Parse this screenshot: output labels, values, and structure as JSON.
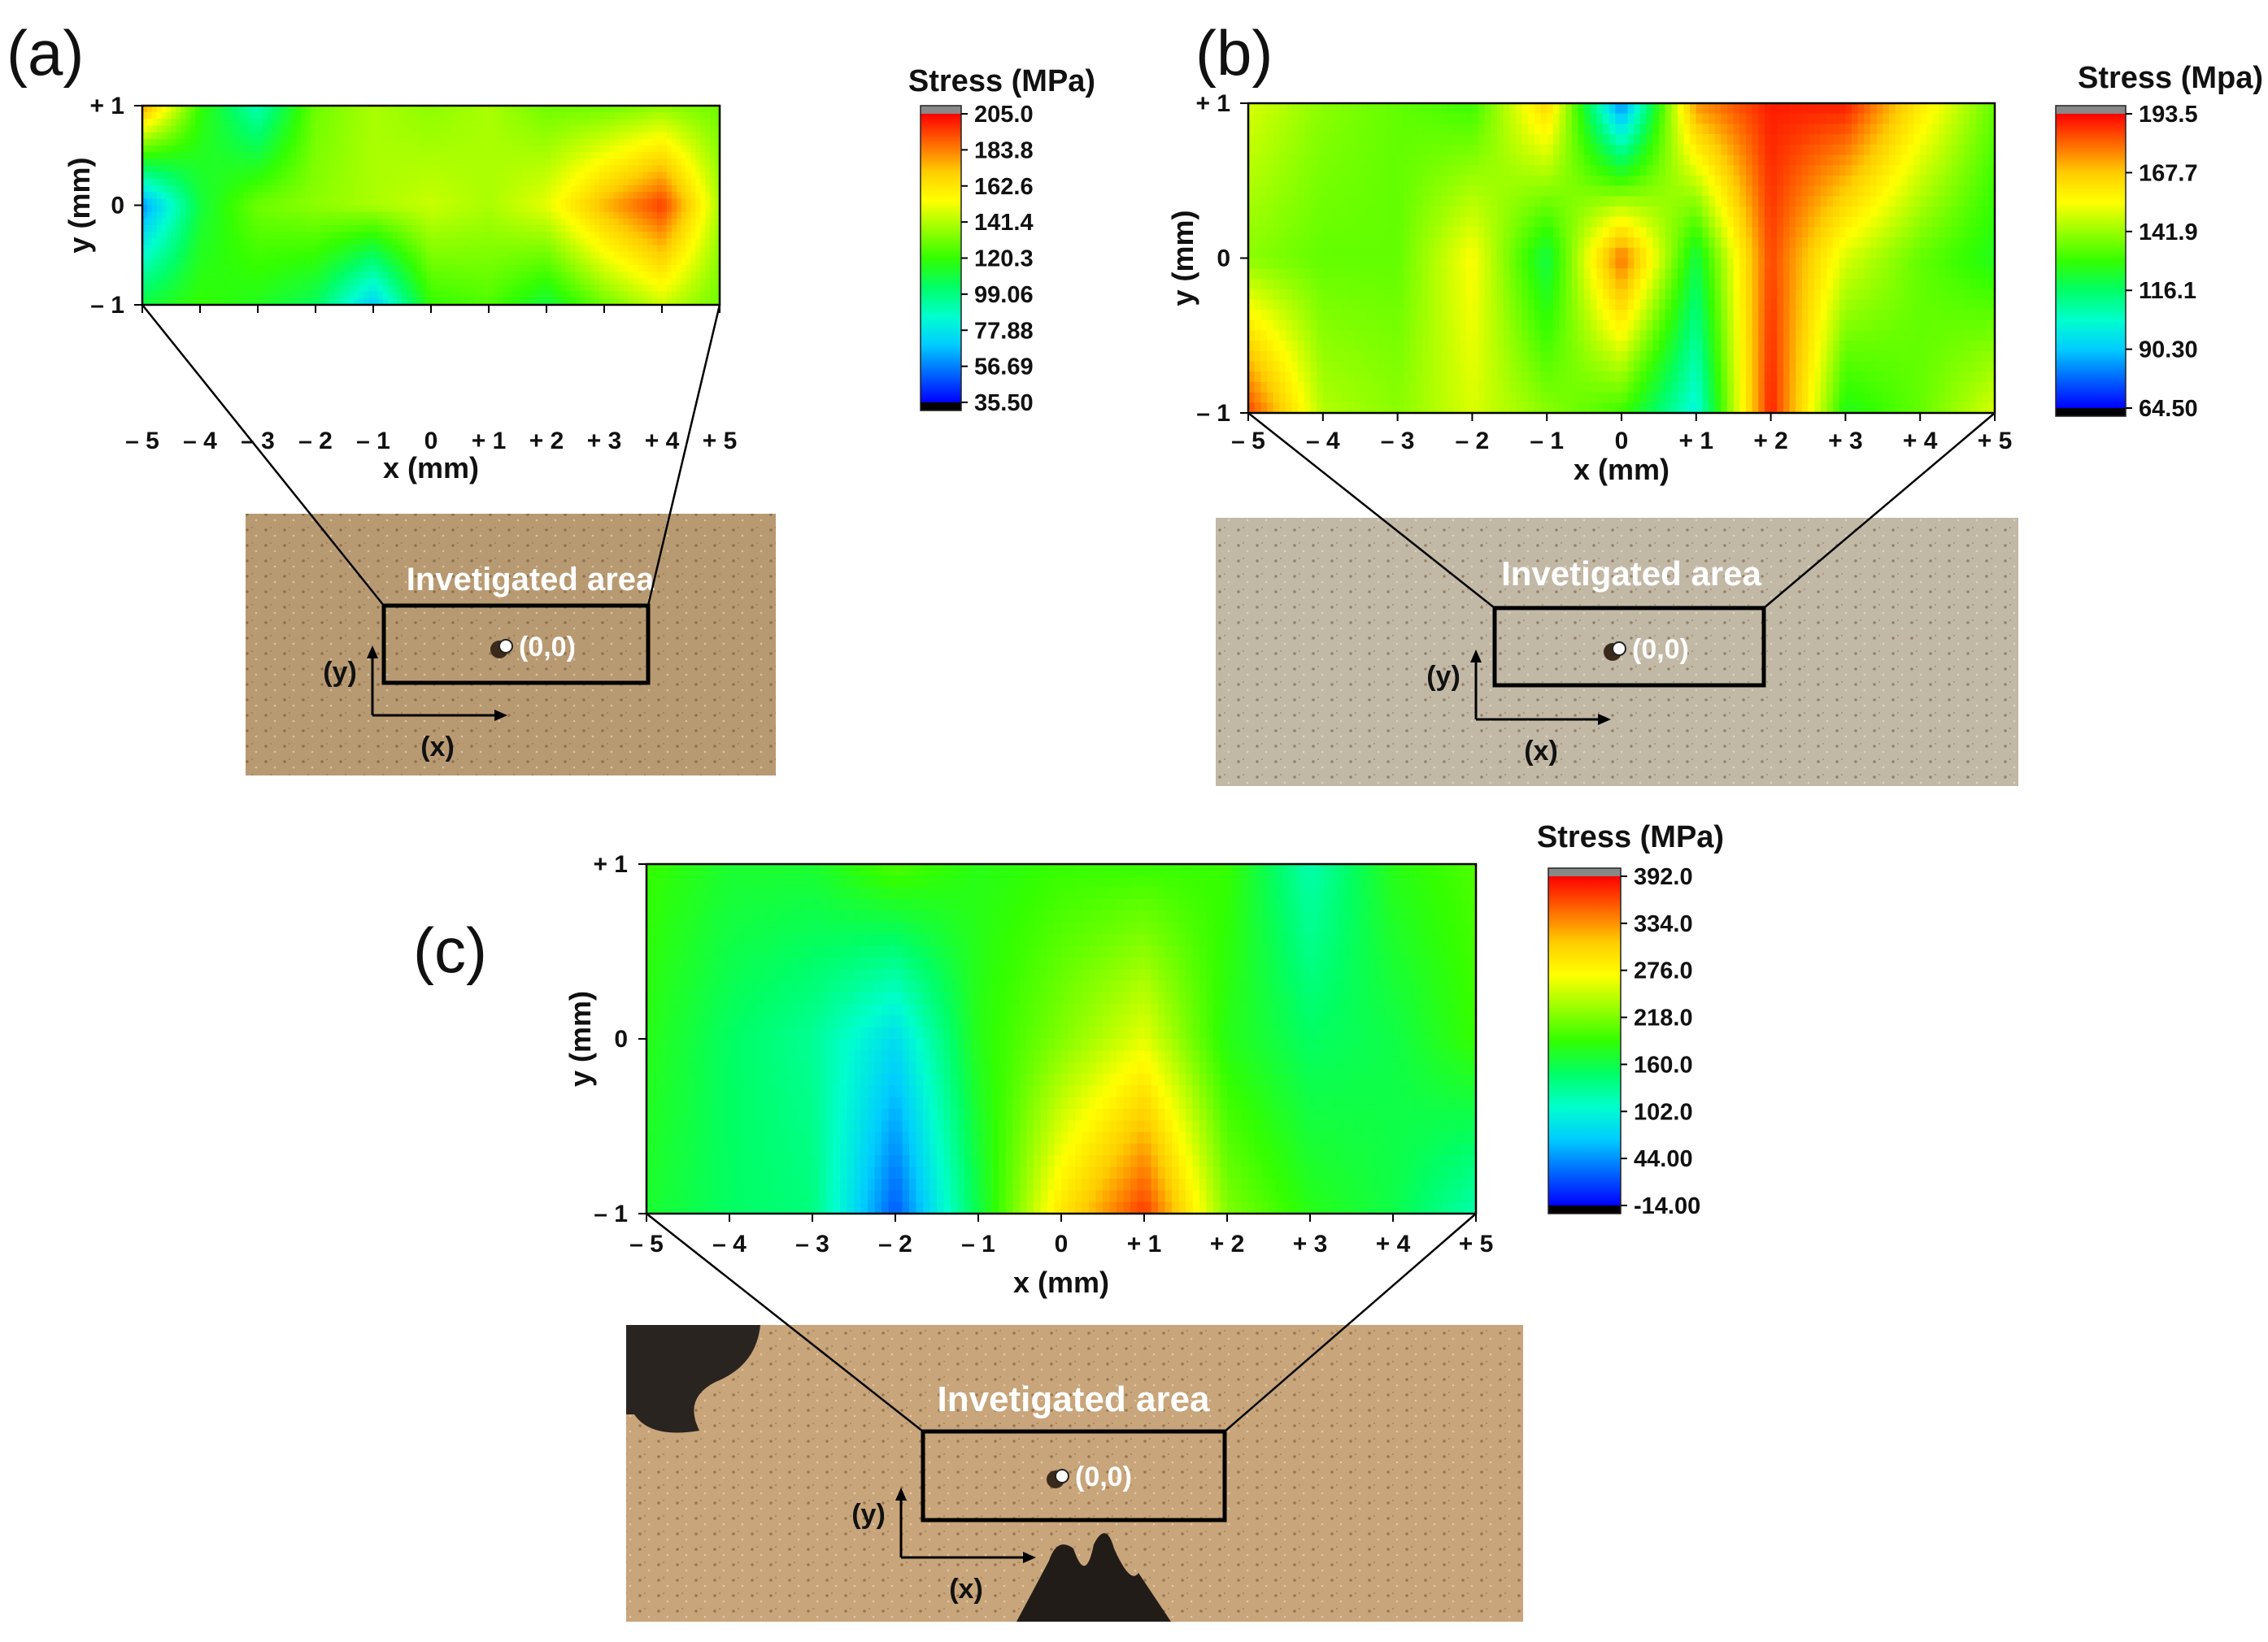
{
  "panel_letters": [
    "(a)",
    "(b)",
    "(c)"
  ],
  "colors": {
    "colormap": [
      "#000000",
      "#0000ff",
      "#0066ff",
      "#00ccff",
      "#00ffcc",
      "#00ff66",
      "#33ff00",
      "#99ff00",
      "#ffff00",
      "#ffcc00",
      "#ff6600",
      "#ff0000",
      "#888888"
    ],
    "photo_a": "#b89a72",
    "photo_b": "#c2b8a6",
    "photo_c": "#c8a57a"
  },
  "photos": [
    {
      "annotation": "Invetigated area",
      "origin_label": "(0,0)",
      "y_arrow_label": "(y)",
      "x_arrow_label": "(x)"
    },
    {
      "annotation": "Invetigated area",
      "origin_label": "(0,0)",
      "y_arrow_label": "(y)",
      "x_arrow_label": "(x)"
    },
    {
      "annotation": "Invetigated area",
      "origin_label": "(0,0)",
      "y_arrow_label": "(y)",
      "x_arrow_label": "(x)"
    }
  ],
  "chart_data": [
    {
      "type": "heatmap",
      "panel": "(a)",
      "xlabel": "x (mm)",
      "ylabel": "y (mm)",
      "xlim": [
        -5,
        5
      ],
      "ylim": [
        -1,
        1
      ],
      "x_ticks": [
        "– 5",
        "– 4",
        "– 3",
        "– 2",
        "– 1",
        "0",
        "+ 1",
        "+ 2",
        "+ 3",
        "+ 4",
        "+ 5"
      ],
      "y_ticks": [
        "+ 1",
        "0",
        "– 1"
      ],
      "colorbar_title": "Stress (MPa)",
      "colorbar_labels": [
        "205.0",
        "183.8",
        "162.6",
        "141.4",
        "120.3",
        "99.06",
        "77.88",
        "56.69",
        "35.50"
      ],
      "zlim": [
        35.5,
        205.0
      ],
      "x": [
        -5,
        -4,
        -3,
        -2,
        -1,
        0,
        1,
        2,
        3,
        4,
        5
      ],
      "y": [
        -1,
        0,
        1
      ],
      "z": [
        [
          110,
          120,
          115,
          105,
          70,
          120,
          125,
          110,
          130,
          145,
          130
        ],
        [
          60,
          110,
          130,
          135,
          140,
          145,
          140,
          150,
          175,
          195,
          140
        ],
        [
          180,
          120,
          90,
          130,
          140,
          135,
          140,
          130,
          130,
          135,
          130
        ]
      ]
    },
    {
      "type": "heatmap",
      "panel": "(b)",
      "xlabel": "x (mm)",
      "ylabel": "y (mm)",
      "xlim": [
        -5,
        5
      ],
      "ylim": [
        -1,
        1
      ],
      "x_ticks": [
        "– 5",
        "– 4",
        "– 3",
        "– 2",
        "– 1",
        "0",
        "+ 1",
        "+ 2",
        "+ 3",
        "+ 4",
        "+ 5"
      ],
      "y_ticks": [
        "+ 1",
        "0",
        "– 1"
      ],
      "colorbar_title": "Stress (Mpa)",
      "colorbar_labels": [
        "193.5",
        "167.7",
        "141.9",
        "116.1",
        "90.30",
        "64.50"
      ],
      "zlim": [
        64.5,
        193.5
      ],
      "x": [
        -5,
        -4,
        -3,
        -2,
        -1,
        0,
        1,
        2,
        3,
        4,
        5
      ],
      "y": [
        -1,
        0,
        1
      ],
      "z": [
        [
          185,
          145,
          140,
          150,
          140,
          130,
          100,
          190,
          125,
          135,
          150
        ],
        [
          140,
          135,
          135,
          155,
          120,
          180,
          120,
          185,
          150,
          135,
          125
        ],
        [
          150,
          140,
          135,
          130,
          165,
          80,
          175,
          190,
          190,
          160,
          135
        ]
      ]
    },
    {
      "type": "heatmap",
      "panel": "(c)",
      "xlabel": "x (mm)",
      "ylabel": "y (mm)",
      "xlim": [
        -5,
        5
      ],
      "ylim": [
        -1,
        1
      ],
      "x_ticks": [
        "– 5",
        "– 4",
        "– 3",
        "– 2",
        "– 1",
        "0",
        "+ 1",
        "+ 2",
        "+ 3",
        "+ 4",
        "+ 5"
      ],
      "y_ticks": [
        "+ 1",
        "0",
        "– 1"
      ],
      "colorbar_title": "Stress (MPa)",
      "colorbar_labels": [
        "392.0",
        "334.0",
        "276.0",
        "218.0",
        "160.0",
        "102.0",
        "44.00",
        "-14.00"
      ],
      "zlim": [
        -14.0,
        392.0
      ],
      "x": [
        -5,
        -4,
        -3,
        -2,
        -1,
        0,
        1,
        2,
        3,
        4,
        5
      ],
      "y": [
        -1,
        0,
        1
      ],
      "z": [
        [
          170,
          150,
          140,
          20,
          160,
          290,
          370,
          220,
          180,
          160,
          120
        ],
        [
          180,
          150,
          130,
          80,
          180,
          220,
          260,
          180,
          150,
          160,
          190
        ],
        [
          190,
          170,
          170,
          200,
          180,
          190,
          190,
          190,
          120,
          180,
          200
        ]
      ]
    }
  ]
}
